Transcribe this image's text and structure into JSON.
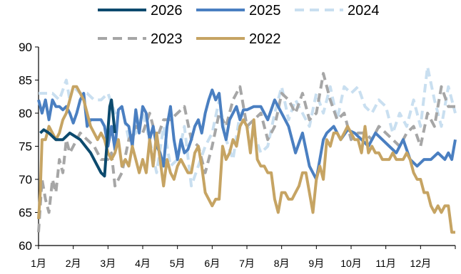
{
  "chart_data": {
    "type": "line",
    "title": "",
    "xlabel": "",
    "ylabel": "",
    "ylim": [
      60,
      90
    ],
    "yticks": [
      60,
      65,
      70,
      75,
      80,
      85,
      90
    ],
    "xlim": [
      1,
      13
    ],
    "xtick_labels": [
      "1月",
      "2月",
      "3月",
      "4月",
      "5月",
      "6月",
      "7月",
      "8月",
      "9月",
      "10月",
      "11月",
      "12月"
    ],
    "grid": false,
    "legend_position": "top",
    "series": [
      {
        "name": "2026",
        "color": "#0c4a6e",
        "dash": "solid",
        "x": [
          1.05,
          1.15,
          1.3,
          1.5,
          1.7,
          1.9,
          2.05,
          2.2,
          2.35,
          2.5,
          2.65,
          2.8,
          2.9,
          3.0,
          3.05,
          3.1,
          3.2
        ],
        "y": [
          77,
          77.5,
          77,
          76,
          76,
          77,
          76.5,
          76,
          75,
          74,
          72.5,
          71,
          70.5,
          77.5,
          81,
          82,
          77
        ]
      },
      {
        "name": "2025",
        "color": "#4a7fc1",
        "dash": "solid",
        "x": [
          1.0,
          1.1,
          1.2,
          1.3,
          1.4,
          1.5,
          1.6,
          1.7,
          1.8,
          1.9,
          2.0,
          2.1,
          2.2,
          2.3,
          2.4,
          2.5,
          2.6,
          2.7,
          2.8,
          2.9,
          3.0,
          3.1,
          3.2,
          3.3,
          3.4,
          3.5,
          3.6,
          3.7,
          3.8,
          3.9,
          4.0,
          4.1,
          4.2,
          4.3,
          4.4,
          4.5,
          4.6,
          4.7,
          4.8,
          4.9,
          5.0,
          5.1,
          5.2,
          5.3,
          5.4,
          5.5,
          5.6,
          5.7,
          5.8,
          5.9,
          6.0,
          6.1,
          6.2,
          6.3,
          6.4,
          6.5,
          6.6,
          6.7,
          6.8,
          6.9,
          7.0,
          7.2,
          7.4,
          7.6,
          7.8,
          8.0,
          8.2,
          8.4,
          8.6,
          8.8,
          9.0,
          9.1,
          9.2,
          9.3,
          9.5,
          9.7,
          9.9,
          10.1,
          10.3,
          10.5,
          10.7,
          10.9,
          11.1,
          11.3,
          11.5,
          11.7,
          11.9,
          12.1,
          12.3,
          12.5,
          12.7,
          12.8,
          12.9,
          13.0
        ],
        "y": [
          82,
          80,
          82,
          79,
          82,
          81,
          81,
          80.5,
          81,
          80,
          78.5,
          80,
          82,
          83,
          78,
          79,
          79,
          79,
          79,
          78,
          75,
          78,
          74.5,
          80.5,
          81,
          78.5,
          78,
          75,
          80.5,
          77,
          81,
          80,
          76,
          78,
          75,
          74,
          72,
          78,
          81,
          76,
          73,
          76,
          74,
          74.5,
          76,
          78,
          79,
          77,
          80,
          82,
          83.5,
          82,
          83,
          78,
          76,
          79,
          80,
          81,
          79,
          80.5,
          80.5,
          81,
          81,
          79,
          82,
          80,
          78,
          74,
          77,
          72,
          70,
          73,
          76,
          77,
          78,
          76,
          77.5,
          77,
          76,
          75,
          77,
          76,
          75,
          74,
          76,
          73,
          72,
          73,
          73,
          74,
          73,
          74,
          73,
          76
        ]
      },
      {
        "name": "2024",
        "color": "#c9dff0",
        "dash": "dash",
        "x": [
          1.0,
          1.2,
          1.4,
          1.6,
          1.8,
          1.9,
          2.0,
          2.2,
          2.4,
          2.6,
          2.8,
          3.0,
          3.2,
          3.4,
          3.6,
          3.8,
          4.0,
          4.2,
          4.4,
          4.6,
          4.8,
          5.0,
          5.2,
          5.4,
          5.6,
          5.8,
          6.0,
          6.2,
          6.4,
          6.6,
          6.8,
          7.0,
          7.2,
          7.4,
          7.6,
          7.8,
          8.0,
          8.2,
          8.4,
          8.6,
          8.8,
          9.0,
          9.2,
          9.4,
          9.6,
          9.8,
          10.0,
          10.2,
          10.4,
          10.6,
          10.8,
          11.0,
          11.2,
          11.4,
          11.6,
          11.8,
          12.0,
          12.2,
          12.4,
          12.6,
          12.8,
          13.0
        ],
        "y": [
          83,
          83,
          83,
          82,
          85,
          82,
          84,
          83,
          83,
          82,
          82,
          83,
          80,
          81,
          76,
          77,
          80,
          76,
          71,
          78,
          72,
          73,
          78,
          69,
          72,
          75,
          77,
          82,
          76,
          73,
          80,
          78,
          77,
          74,
          75,
          80,
          84,
          79,
          82,
          80,
          78,
          83,
          80,
          84,
          79,
          84,
          83,
          84,
          81,
          80,
          82,
          81,
          77,
          80,
          78,
          82,
          78,
          87,
          82,
          78,
          84,
          80
        ]
      },
      {
        "name": "2023",
        "color": "#a6a6a6",
        "dash": "dash",
        "x": [
          1.0,
          1.1,
          1.2,
          1.3,
          1.4,
          1.5,
          1.6,
          1.7,
          1.8,
          1.9,
          2.0,
          2.2,
          2.4,
          2.6,
          2.8,
          3.0,
          3.1,
          3.2,
          3.4,
          3.6,
          3.8,
          4.0,
          4.2,
          4.4,
          4.6,
          4.8,
          5.0,
          5.2,
          5.4,
          5.6,
          5.8,
          6.0,
          6.2,
          6.4,
          6.6,
          6.8,
          7.0,
          7.2,
          7.4,
          7.6,
          7.8,
          8.0,
          8.2,
          8.4,
          8.6,
          8.8,
          9.0,
          9.2,
          9.4,
          9.6,
          9.8,
          10.0,
          10.2,
          10.4,
          10.6,
          10.8,
          11.0,
          11.2,
          11.4,
          11.6,
          11.8,
          12.0,
          12.2,
          12.4,
          12.6,
          12.8,
          13.0
        ],
        "y": [
          62,
          70,
          67,
          65,
          70,
          68,
          73,
          71,
          76,
          74,
          75,
          77,
          76,
          75,
          73,
          73,
          74,
          69,
          71,
          76,
          78,
          77,
          80,
          76,
          79,
          79,
          80,
          81,
          76,
          75,
          71,
          75,
          80,
          78,
          82,
          84,
          78,
          79,
          80,
          76,
          78,
          83,
          82,
          80,
          83,
          79,
          80,
          86,
          82,
          79,
          80,
          76,
          77,
          77,
          76,
          78,
          77,
          76,
          75,
          77,
          78,
          75,
          80,
          78,
          84,
          81,
          81
        ]
      },
      {
        "name": "2022",
        "color": "#c6a463",
        "dash": "solid",
        "x": [
          1.0,
          1.05,
          1.1,
          1.2,
          1.3,
          1.4,
          1.5,
          1.6,
          1.7,
          1.8,
          1.9,
          2.0,
          2.1,
          2.2,
          2.3,
          2.4,
          2.5,
          2.6,
          2.7,
          2.8,
          2.9,
          3.0,
          3.1,
          3.2,
          3.3,
          3.4,
          3.5,
          3.6,
          3.7,
          3.8,
          3.9,
          4.0,
          4.1,
          4.2,
          4.3,
          4.4,
          4.5,
          4.6,
          4.7,
          4.8,
          4.9,
          5.0,
          5.1,
          5.2,
          5.3,
          5.4,
          5.5,
          5.6,
          5.7,
          5.8,
          5.9,
          6.0,
          6.1,
          6.2,
          6.3,
          6.4,
          6.5,
          6.6,
          6.7,
          6.8,
          6.9,
          7.0,
          7.1,
          7.2,
          7.3,
          7.4,
          7.5,
          7.6,
          7.7,
          7.8,
          7.9,
          8.0,
          8.1,
          8.2,
          8.3,
          8.4,
          8.5,
          8.6,
          8.7,
          8.8,
          8.9,
          9.0,
          9.1,
          9.2,
          9.3,
          9.4,
          9.5,
          9.6,
          9.7,
          9.8,
          9.9,
          10.0,
          10.1,
          10.2,
          10.3,
          10.4,
          10.5,
          10.6,
          10.7,
          10.8,
          10.9,
          11.0,
          11.1,
          11.2,
          11.3,
          11.4,
          11.5,
          11.6,
          11.7,
          11.8,
          11.9,
          12.0,
          12.1,
          12.2,
          12.3,
          12.4,
          12.5,
          12.6,
          12.7,
          12.8,
          12.9,
          13.0
        ],
        "y": [
          64,
          68,
          76,
          76,
          78,
          77,
          76,
          77,
          79,
          80,
          82,
          84,
          84,
          83,
          82,
          80,
          78,
          77,
          76,
          77,
          76,
          74,
          73,
          74,
          76,
          72,
          73,
          72,
          75,
          73,
          71,
          73,
          71,
          76,
          72,
          77,
          73,
          69,
          73,
          71,
          70,
          72,
          73,
          72,
          71,
          71,
          74,
          75,
          72,
          68,
          67,
          66,
          67,
          67,
          75,
          73,
          74,
          76,
          75,
          78,
          79,
          78,
          74,
          79,
          73,
          72,
          72,
          71,
          71,
          67,
          65,
          68,
          68,
          67,
          67,
          68,
          69,
          71,
          71,
          68,
          65,
          70,
          72,
          70,
          76,
          75,
          77,
          77,
          76,
          77,
          78,
          77,
          76,
          76,
          74,
          78,
          74,
          75,
          74,
          74,
          73,
          73,
          73,
          74,
          73,
          73,
          73,
          74,
          73,
          71,
          70,
          70,
          68,
          68,
          66,
          65,
          66,
          65,
          66,
          66,
          62,
          62
        ]
      }
    ]
  }
}
